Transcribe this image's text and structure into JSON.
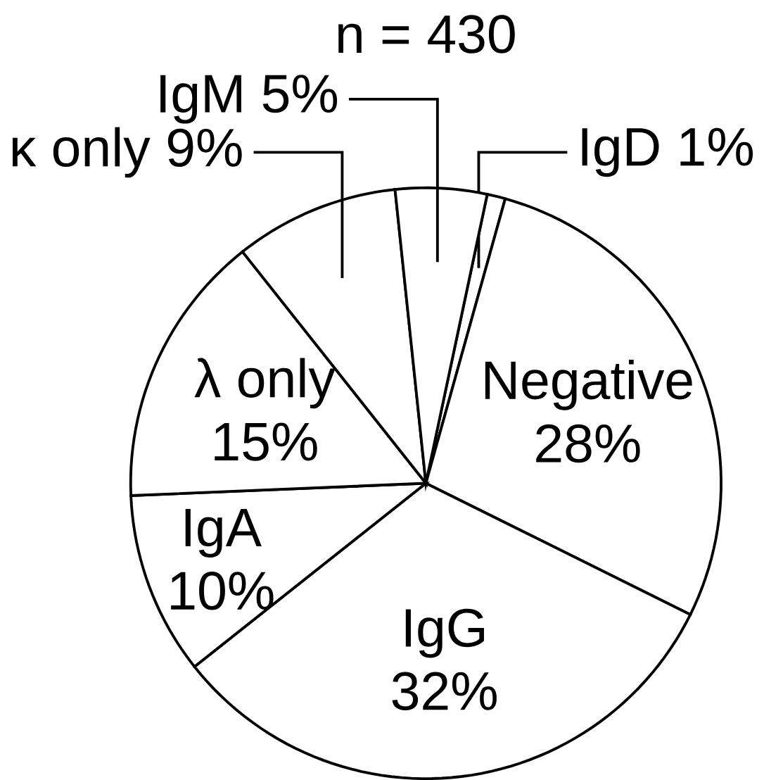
{
  "chart_data": {
    "type": "pie",
    "title": "n = 430",
    "categories": [
      "IgD",
      "Negative",
      "IgG",
      "IgA",
      "λ only",
      "κ only",
      "IgM"
    ],
    "values": [
      1,
      28,
      32,
      10,
      15,
      9,
      5
    ],
    "value_labels": [
      "1%",
      "28%",
      "32%",
      "10%",
      "15%",
      "9%",
      "5%"
    ],
    "colors": [
      "#ffffff",
      "#ffffff",
      "#ffffff",
      "#ffffff",
      "#ffffff",
      "#ffffff",
      "#ffffff"
    ]
  }
}
